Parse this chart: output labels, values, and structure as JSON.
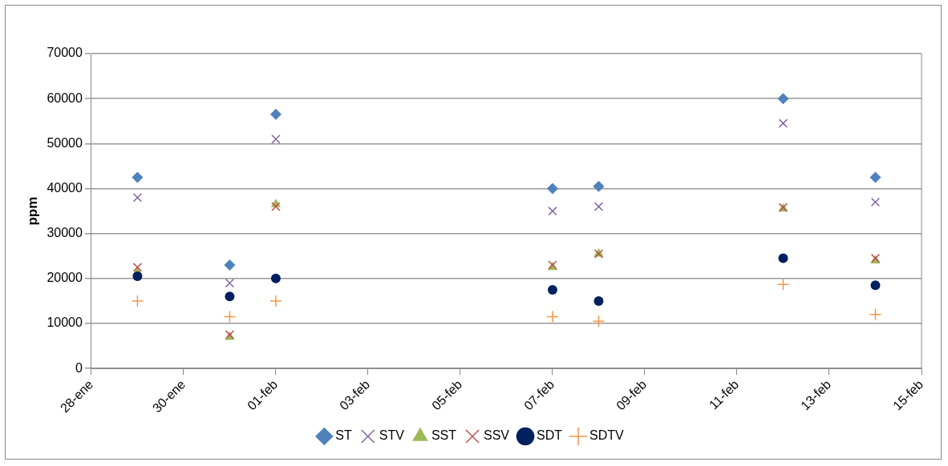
{
  "chart_data": {
    "type": "scatter",
    "ylabel": "ppm",
    "x": [
      "--01-29",
      "--01-31",
      "--02-01",
      "--02-07",
      "--02-08",
      "--02-12",
      "--02-14"
    ],
    "xlim": [
      "--01-28",
      "--02-15"
    ],
    "xticks": [
      {
        "value": "--01-28",
        "label": "28-ene"
      },
      {
        "value": "--01-30",
        "label": "30-ene"
      },
      {
        "value": "--02-01",
        "label": "01-feb"
      },
      {
        "value": "--02-03",
        "label": "03-feb"
      },
      {
        "value": "--02-05",
        "label": "05-feb"
      },
      {
        "value": "--02-07",
        "label": "07-feb"
      },
      {
        "value": "--02-09",
        "label": "09-feb"
      },
      {
        "value": "--02-11",
        "label": "11-feb"
      },
      {
        "value": "--02-13",
        "label": "13-feb"
      },
      {
        "value": "--02-15",
        "label": "15-feb"
      }
    ],
    "ylim": [
      0,
      70000
    ],
    "yticks": [
      0,
      10000,
      20000,
      30000,
      40000,
      50000,
      60000,
      70000
    ],
    "grid": "y",
    "legend": "bottom",
    "series": [
      {
        "name": "ST",
        "color": "#4f81bd",
        "marker": "diamond",
        "values": [
          42500,
          23000,
          56500,
          40000,
          40500,
          60000,
          42500
        ]
      },
      {
        "name": "STV",
        "color": "#8064a2",
        "marker": "cross",
        "values": [
          38000,
          19000,
          51000,
          35000,
          36000,
          54500,
          37000
        ]
      },
      {
        "name": "SST",
        "color": "#9bbb59",
        "marker": "triangle",
        "values": [
          21500,
          7000,
          36500,
          22500,
          25500,
          35500,
          24000
        ]
      },
      {
        "name": "SSV",
        "color": "#c0504d",
        "marker": "cross",
        "values": [
          22500,
          7500,
          36000,
          23000,
          25500,
          35800,
          24500
        ]
      },
      {
        "name": "SDT",
        "color": "#002060",
        "marker": "circle",
        "values": [
          20500,
          16000,
          20000,
          17500,
          15000,
          24500,
          18500
        ]
      },
      {
        "name": "SDTV",
        "color": "#f79646",
        "marker": "plus",
        "values": [
          15000,
          11500,
          15000,
          11500,
          10500,
          18700,
          12000
        ]
      }
    ]
  }
}
